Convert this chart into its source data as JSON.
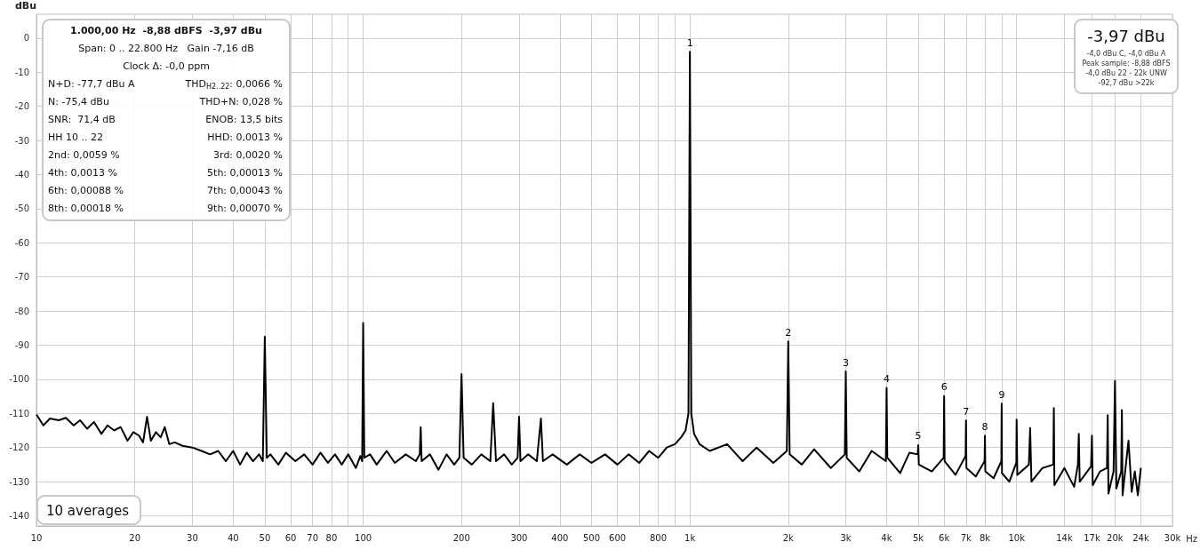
{
  "chart_data": {
    "type": "line",
    "ylabel": "dBu",
    "xlabel": "Hz",
    "log": "x",
    "grid": true,
    "marker": "none",
    "line_style": "solid",
    "xlim": [
      10,
      30000
    ],
    "ylim": [
      -143,
      7
    ],
    "xticks": [
      10,
      20,
      30,
      40,
      50,
      60,
      70,
      80,
      {
        "value": 90,
        "label": null
      },
      100,
      200,
      300,
      400,
      500,
      600,
      {
        "value": 700,
        "label": null
      },
      800,
      {
        "value": 900,
        "label": null
      },
      {
        "value": 1000,
        "label": "1k"
      },
      {
        "value": 2000,
        "label": "2k"
      },
      {
        "value": 3000,
        "label": "3k"
      },
      {
        "value": 4000,
        "label": "4k"
      },
      {
        "value": 5000,
        "label": "5k"
      },
      {
        "value": 6000,
        "label": "6k"
      },
      {
        "value": 7000,
        "label": "7k"
      },
      {
        "value": 8000,
        "label": "8k"
      },
      {
        "value": 9000,
        "label": null
      },
      {
        "value": 10000,
        "label": "10k"
      },
      {
        "value": 14000,
        "label": "14k"
      },
      {
        "value": 17000,
        "label": "17k"
      },
      {
        "value": 20000,
        "label": "20k"
      },
      {
        "value": 24000,
        "label": "24k"
      },
      {
        "value": 30000,
        "label": "30k"
      }
    ],
    "yticks": [
      0,
      -10,
      -20,
      -30,
      -40,
      -50,
      -60,
      -70,
      -80,
      -90,
      -100,
      -110,
      -120,
      -130,
      -140
    ],
    "series": [
      {
        "color": "#000000",
        "x": [
          10,
          10.5,
          11,
          11.7,
          12.3,
          13,
          13.6,
          14.3,
          15,
          15.8,
          16.5,
          17.3,
          18.1,
          19,
          19.8,
          20.6,
          21.2,
          21.8,
          22.4,
          23.2,
          24,
          24.7,
          25.5,
          26.5,
          28,
          30,
          32,
          34,
          36,
          38,
          40,
          42,
          44,
          46,
          48,
          49.3,
          50,
          50.7,
          52,
          55,
          58,
          62,
          66,
          70,
          74,
          78,
          82,
          86,
          90,
          95,
          98,
          99.3,
          100,
          100.8,
          105,
          110,
          118,
          125,
          135,
          145,
          149,
          150,
          151,
          160,
          170,
          180,
          190,
          197,
          200,
          203,
          215,
          230,
          245,
          250,
          255,
          270,
          285,
          297,
          300,
          303,
          320,
          340,
          350,
          355,
          380,
          420,
          460,
          500,
          550,
          600,
          650,
          700,
          750,
          800,
          850,
          900,
          940,
          970,
          990,
          1000,
          1010,
          1030,
          1070,
          1150,
          1300,
          1450,
          1600,
          1800,
          1980,
          2000,
          2020,
          2200,
          2400,
          2700,
          2980,
          3000,
          3020,
          3300,
          3600,
          3980,
          4000,
          4020,
          4400,
          4700,
          4980,
          5000,
          5020,
          5500,
          5980,
          6000,
          6020,
          6500,
          6980,
          7000,
          7020,
          7500,
          7980,
          8000,
          8020,
          8500,
          8980,
          9000,
          9020,
          9500,
          9980,
          10000,
          10050,
          10900,
          11000,
          11100,
          12000,
          12950,
          13000,
          13050,
          14000,
          15000,
          15400,
          15500,
          15600,
          16900,
          17000,
          17100,
          18000,
          18900,
          19000,
          19100,
          19800,
          20000,
          20200,
          20900,
          21000,
          21100,
          22000,
          22500,
          23000,
          23500,
          24000
        ],
        "values": [
          -110.3,
          -113.5,
          -111.5,
          -112,
          -111.3,
          -113.5,
          -112,
          -114.5,
          -112.5,
          -116,
          -113.5,
          -115,
          -114,
          -118,
          -115.5,
          -116.5,
          -118.5,
          -111,
          -118,
          -115.5,
          -117,
          -114,
          -119,
          -118.5,
          -119.5,
          -120,
          -121,
          -122,
          -121,
          -124,
          -121,
          -125,
          -121.5,
          -124,
          -122,
          -124,
          -87.5,
          -123,
          -122,
          -125,
          -121.5,
          -124,
          -122,
          -125,
          -121.5,
          -124.5,
          -122,
          -125,
          -122,
          -126,
          -122.5,
          -124,
          -83.5,
          -123,
          -122,
          -125,
          -121,
          -124.5,
          -122,
          -124,
          -122,
          -114,
          -124,
          -122,
          -126.5,
          -122,
          -125,
          -123,
          -98.5,
          -123,
          -125,
          -122,
          -124,
          -107,
          -124,
          -122,
          -125,
          -123,
          -111,
          -124,
          -122,
          -124,
          -111.5,
          -124,
          -122,
          -125,
          -122,
          -124.5,
          -122,
          -125,
          -122,
          -124.5,
          -121,
          -123,
          -120,
          -119,
          -117,
          -115,
          -110,
          -4,
          -110,
          -116,
          -119,
          -121,
          -119,
          -124,
          -120,
          -124.5,
          -121,
          -88.9,
          -122,
          -125,
          -120.5,
          -126,
          -122,
          -97.7,
          -123,
          -127,
          -121,
          -124,
          -102.5,
          -123,
          -127.5,
          -121.5,
          -122,
          -119.3,
          -125,
          -127,
          -123,
          -104.9,
          -124,
          -128,
          -122.5,
          -112.1,
          -126,
          -128.5,
          -124,
          -116.5,
          -127,
          -129,
          -124,
          -107.1,
          -127.5,
          -130,
          -124.5,
          -111.8,
          -128,
          -125,
          -114.3,
          -130,
          -126,
          -125,
          -108.4,
          -131,
          -126,
          -131.5,
          -125,
          -116,
          -130,
          -125.5,
          -116.5,
          -131,
          -127,
          -126,
          -110.5,
          -133.5,
          -127,
          -100.5,
          -132,
          -127,
          -109,
          -134,
          -118,
          -133,
          -127,
          -134,
          -126
        ]
      }
    ],
    "annotations": [
      {
        "text": "1",
        "x": 1000,
        "y": -3.97
      },
      {
        "text": "2",
        "x": 2000,
        "y": -88.9
      },
      {
        "text": "3",
        "x": 3000,
        "y": -97.7
      },
      {
        "text": "4",
        "x": 4000,
        "y": -102.5
      },
      {
        "text": "5",
        "x": 5000,
        "y": -119.3
      },
      {
        "text": "6",
        "x": 6000,
        "y": -104.9
      },
      {
        "text": "7",
        "x": 7000,
        "y": -112.1
      },
      {
        "text": "8",
        "x": 8000,
        "y": -116.5
      },
      {
        "text": "9",
        "x": 9000,
        "y": -107.1
      },
      "1.000,00 Hz  -8,88 dBFS  -3,97 dBu",
      "Span: 0 .. 22.800 Hz   Gain -7,16 dB",
      "Clock Δ: -0,0 ppm",
      "N+D: -77,7 dBu A",
      "THD$_{H2..22}$: 0,0066 %",
      "N: -75,4 dBu",
      "THD+N: 0,028 %",
      "SNR:  71,4 dB",
      "ENOB: 13,5 bits",
      "HH 10 .. 22",
      "HHD: 0,0013 %",
      "2nd: 0,0059 %",
      "3rd: 0,0020 %",
      "4th: 0,0013 %",
      "5th: 0,00013 %",
      "6th: 0,00088 %",
      "7th: 0,00043 %",
      "8th: 0,00018 %",
      "9th: 0,00070 %",
      "-3,97 dBu",
      "-4,0 dBu C, -4,0 dBu A",
      "Peak sample: -8,88 dBFS",
      "-4,0 dBu 22 - 22k UNW",
      "-92,7 dBu >22k",
      "10 averages"
    ]
  }
}
